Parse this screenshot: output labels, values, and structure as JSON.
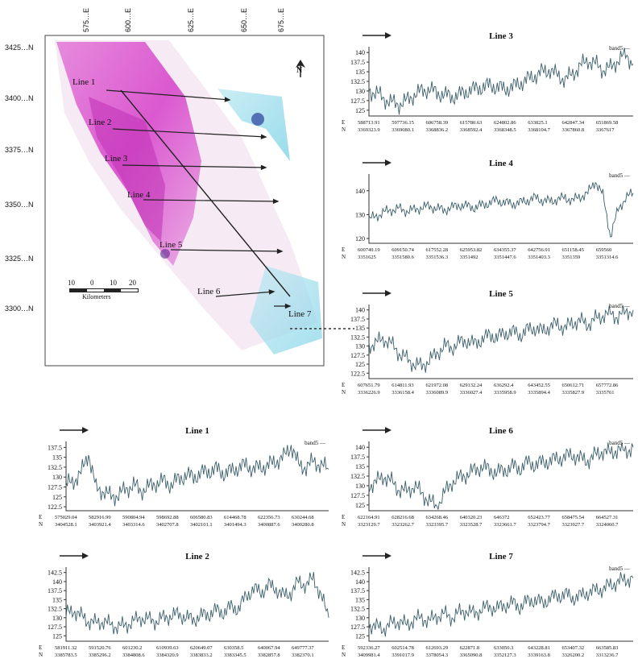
{
  "map": {
    "top_labels": [
      "575…E",
      "600…E",
      "625…E",
      "650…E",
      "675…E"
    ],
    "left_labels": [
      "3425…N",
      "3400…N",
      "3375…N",
      "3350…N",
      "3325…N",
      "3300…N"
    ],
    "line_labels": [
      "Line 1",
      "Line 2",
      "Line 3",
      "Line 4",
      "Line 5",
      "Line 6",
      "Line 7"
    ],
    "scale_ticks": [
      "10",
      "0",
      "10",
      "20"
    ],
    "scale_unit": "Kilometers",
    "north_arrow": "N"
  },
  "chart_data": [
    {
      "type": "line",
      "id": "line3",
      "title": "Line 3",
      "legend": "band5",
      "yticks": [
        "140",
        "137.5",
        "135",
        "132.5",
        "130",
        "127.5",
        "125"
      ],
      "ylim": [
        123.5,
        141.5
      ],
      "series": [
        {
          "name": "band5",
          "values": [
            130,
            129.5,
            128,
            127,
            126.5,
            127.5,
            129,
            130,
            130.5,
            129.5,
            129,
            128.5,
            129,
            130,
            130.5,
            131,
            131.5,
            131,
            130.5,
            131,
            132,
            133,
            134,
            135,
            135.5,
            134,
            133,
            134.5,
            136.5,
            138,
            137,
            135.5,
            136,
            138,
            139.5,
            137
          ]
        }
      ],
      "e_values": [
        "588713.91",
        "597736.15",
        "606758.39",
        "615780.63",
        "624802.86",
        "633825.1",
        "642847.34",
        "651869.58"
      ],
      "n_values": [
        "3369323.9",
        "3369080.1",
        "3368836.2",
        "3368592.4",
        "3368348.5",
        "3368104.7",
        "3367860.8",
        "3367617"
      ]
    },
    {
      "type": "line",
      "id": "line4",
      "title": "Line 4",
      "legend": "band5",
      "yticks": [
        "140",
        "130",
        "120"
      ],
      "ylim": [
        118,
        147
      ],
      "series": [
        {
          "name": "band5",
          "values": [
            128,
            129.5,
            131,
            132,
            132.5,
            131.5,
            132,
            133,
            133.5,
            132.5,
            132,
            133,
            134,
            133.5,
            133,
            134,
            135,
            136,
            135,
            134.5,
            135,
            136,
            137,
            136,
            135.5,
            136.5,
            137,
            136,
            137.5,
            139,
            144,
            138,
            121,
            132,
            137,
            139
          ]
        }
      ],
      "e_values": [
        "600749.19",
        "609150.74",
        "617552.28",
        "625953.82",
        "634355.37",
        "642756.91",
        "651158.45",
        "659560"
      ],
      "n_values": [
        "3351625",
        "3351580.6",
        "3351536.3",
        "3351492",
        "3351447.6",
        "3351403.3",
        "3351359",
        "3351314.6"
      ]
    },
    {
      "type": "line",
      "id": "line5",
      "title": "Line 5",
      "legend": "band5",
      "yticks": [
        "140",
        "137.5",
        "135",
        "132.5",
        "130",
        "127.5",
        "125",
        "122.5"
      ],
      "ylim": [
        121,
        141.5
      ],
      "series": [
        {
          "name": "band5",
          "values": [
            130,
            131,
            132,
            130.5,
            128,
            126.5,
            125,
            124.5,
            126,
            128,
            130,
            129.5,
            131,
            131.5,
            130.5,
            132,
            133,
            132.5,
            133.5,
            134,
            133,
            134.5,
            135,
            134,
            135.5,
            136,
            135,
            136.5,
            137,
            136,
            137.5,
            138.5,
            139,
            138,
            139.5,
            140
          ]
        }
      ],
      "e_values": [
        "607651.79",
        "614811.93",
        "621972.08",
        "629132.24",
        "636292.4",
        "643452.55",
        "650612.71",
        "657772.86"
      ],
      "n_values": [
        "3336226.9",
        "3336158.4",
        "3336089.9",
        "3336027.4",
        "3335958.9",
        "3335894.4",
        "3335827.9",
        "3335761"
      ]
    },
    {
      "type": "line",
      "id": "line1",
      "title": "Line 1",
      "legend": "band5",
      "yticks": [
        "137.5",
        "135",
        "132.5",
        "130",
        "127.5",
        "125",
        "122.5"
      ],
      "ylim": [
        121.5,
        139
      ],
      "series": [
        {
          "name": "band5",
          "values": [
            128,
            129,
            131,
            136,
            127,
            126.5,
            125,
            125.5,
            127,
            128,
            126.5,
            127.5,
            128.5,
            129,
            128,
            129.5,
            130.5,
            130,
            131,
            131.5,
            132,
            131,
            131.5,
            132.5,
            133,
            132,
            132.5,
            133,
            134,
            135,
            138,
            133,
            132.5,
            134,
            133,
            132
          ]
        }
      ],
      "e_values": [
        "575029.04",
        "582916.99",
        "590804.94",
        "598692.88",
        "606580.83",
        "614468.78",
        "622356.73",
        "630244.68"
      ],
      "n_values": [
        "3404528.1",
        "3403921.4",
        "3403314.6",
        "3402707.8",
        "3402101.1",
        "3401494.3",
        "3400887.6",
        "3400280.8"
      ]
    },
    {
      "type": "line",
      "id": "line6",
      "title": "Line 6",
      "legend": "band5",
      "yticks": [
        "140",
        "137.5",
        "135",
        "132.5",
        "130",
        "127.5",
        "125"
      ],
      "ylim": [
        123.5,
        141.5
      ],
      "series": [
        {
          "name": "band5",
          "values": [
            130,
            131,
            132.5,
            131,
            129,
            128.5,
            130,
            128,
            126,
            124.5,
            128,
            131,
            132,
            133,
            134,
            135,
            134,
            133.5,
            134,
            135,
            134.5,
            136,
            135.5,
            136,
            136.5,
            137,
            137.5,
            138,
            137,
            136.5,
            138,
            139,
            138.5,
            139.5,
            139,
            140
          ]
        }
      ],
      "e_values": [
        "622164.91",
        "628216.68",
        "634268.46",
        "640320.23",
        "646372",
        "652423.77",
        "658475.54",
        "664527.31"
      ],
      "n_values": [
        "3323129.7",
        "3323262.7",
        "3323395.7",
        "3323528.7",
        "3323661.7",
        "3323794.7",
        "3323927.7",
        "3324060.7"
      ]
    },
    {
      "type": "line",
      "id": "line2",
      "title": "Line 2",
      "legend": "",
      "yticks": [
        "142.5",
        "140",
        "137.5",
        "135",
        "132.5",
        "130",
        "127.5",
        "125"
      ],
      "ylim": [
        123.5,
        144
      ],
      "series": [
        {
          "name": "",
          "values": [
            131,
            132,
            130.5,
            129,
            128.5,
            129,
            128,
            127.5,
            128,
            129,
            130,
            129.5,
            129,
            130,
            130.5,
            131,
            130,
            129.5,
            130.5,
            131,
            132,
            131.5,
            133,
            132.5,
            136,
            138,
            137,
            139,
            138,
            136,
            137,
            140,
            139,
            141,
            136,
            130
          ]
        }
      ],
      "e_values": [
        "581911.32",
        "591520.76",
        "601230.2",
        "610939.63",
        "620649.07",
        "630358.5",
        "640067.94",
        "649777.37"
      ],
      "n_values": [
        "3385783.5",
        "3385296.2",
        "3384808.6",
        "3384320.9",
        "3383833.2",
        "3383345.5",
        "3382857.8",
        "3382370.1"
      ]
    },
    {
      "type": "line",
      "id": "line7",
      "title": "Line 7",
      "legend": "band5",
      "yticks": [
        "142.5",
        "140",
        "137.5",
        "135",
        "132.5",
        "130",
        "127.5",
        "125"
      ],
      "ylim": [
        123.5,
        144
      ],
      "series": [
        {
          "name": "band5",
          "values": [
            128,
            127.5,
            127,
            128.5,
            129,
            128,
            129.5,
            130,
            129,
            130.5,
            131,
            130,
            131.5,
            132,
            131,
            132.5,
            133,
            132.5,
            133.5,
            134,
            133,
            134.5,
            135,
            134,
            135.5,
            136,
            136.5,
            135.5,
            136,
            137,
            137.5,
            138,
            139,
            140,
            140.5,
            141
          ]
        }
      ],
      "e_values": [
        "592336.27",
        "602514.78",
        "612693.29",
        "622871.8",
        "633050.3",
        "643228.81",
        "653407.32",
        "663585.83"
      ],
      "n_values": [
        "3409981.4",
        "3391017.9",
        "3378054.3",
        "3365090.8",
        "3352127.3",
        "3339163.8",
        "3326200.2",
        "3313236.7"
      ]
    }
  ],
  "colors": {
    "map_magenta": "#d63fc9",
    "map_cyan": "#27b7d6",
    "plot_line": "#3b5f6b"
  }
}
